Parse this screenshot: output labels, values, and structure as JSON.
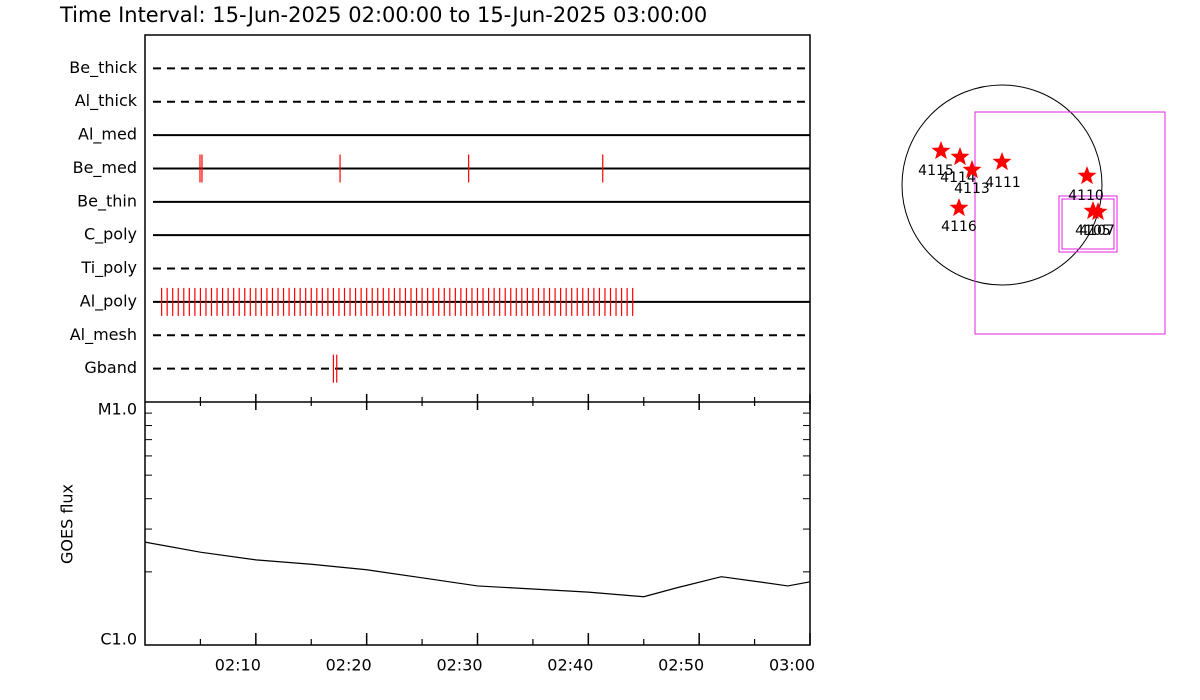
{
  "chart_data": [
    {
      "type": "timeline",
      "title": "Time Interval: 15-Jun-2025 02:00:00 to 15-Jun-2025 03:00:00",
      "categories": [
        "Be_thick",
        "Al_thick",
        "Al_med",
        "Be_med",
        "Be_thin",
        "C_poly",
        "Ti_poly",
        "Al_poly",
        "Al_mesh",
        "Gband"
      ],
      "line_styles": [
        "dashed",
        "dashed",
        "solid",
        "solid",
        "solid",
        "solid",
        "dashed",
        "solid",
        "dashed",
        "dashed"
      ],
      "events": [
        [],
        [],
        [],
        [
          4.96,
          5.14,
          17.6,
          29.2,
          41.3
        ],
        [],
        [],
        [],
        [
          1.5,
          2,
          2.5,
          3,
          3.5,
          4,
          4.5,
          5,
          5.5,
          6,
          6.5,
          7,
          7.5,
          8,
          8.5,
          9,
          9.5,
          10,
          10.5,
          11,
          11.5,
          12,
          12.5,
          13,
          13.5,
          14,
          14.5,
          15,
          15.5,
          16,
          16.5,
          17,
          17.5,
          18,
          18.5,
          19,
          19.5,
          20,
          20.5,
          21,
          21.5,
          22,
          22.5,
          23,
          23.5,
          24,
          24.5,
          25,
          25.5,
          26,
          26.5,
          27,
          27.5,
          28,
          28.5,
          29,
          29.5,
          30,
          30.5,
          31,
          31.5,
          32,
          32.5,
          33,
          33.5,
          34,
          34.5,
          35,
          35.5,
          36,
          36.5,
          37,
          37.5,
          38,
          38.5,
          39,
          39.5,
          40,
          40.5,
          41,
          41.5,
          42,
          42.5,
          43,
          43.5,
          44
        ],
        [],
        [
          17.0,
          17.3
        ]
      ],
      "color": "#ff0000",
      "xlim": [
        0,
        60
      ]
    },
    {
      "type": "line",
      "ylabel": "GOES flux",
      "x": [
        0,
        5,
        10,
        15,
        20,
        25,
        30,
        35,
        40,
        45,
        48,
        52,
        55,
        58,
        60
      ],
      "values": [
        2.65e-06,
        2.41e-06,
        2.24e-06,
        2.15e-06,
        2.04e-06,
        1.89e-06,
        1.75e-06,
        1.7e-06,
        1.65e-06,
        1.58e-06,
        1.72e-06,
        1.91e-06,
        1.83e-06,
        1.75e-06,
        1.82e-06
      ],
      "color": "#000000",
      "log_scale": true,
      "ylim": [
        1e-06,
        1e-05
      ],
      "yticks": [
        {
          "value": 1e-06,
          "label": "C1.0"
        },
        {
          "value": 1e-05,
          "label": "M1.0"
        }
      ],
      "yminor": [
        2e-06,
        3e-06,
        4e-06,
        5e-06,
        6e-06,
        7e-06,
        8e-06,
        9e-06
      ],
      "xlim": [
        0,
        60
      ],
      "xticks": [
        {
          "value": 10,
          "label": "02:10"
        },
        {
          "value": 20,
          "label": "02:20"
        },
        {
          "value": 30,
          "label": "02:30"
        },
        {
          "value": 40,
          "label": "02:40"
        },
        {
          "value": 50,
          "label": "02:50"
        },
        {
          "value": 60,
          "label": "03:00"
        }
      ],
      "xminor": [
        5,
        15,
        25,
        35,
        45,
        55
      ]
    }
  ],
  "map": {
    "regions": [
      "4115",
      "4114",
      "4113",
      "4111",
      "4110",
      "4116",
      "4105",
      "4107"
    ],
    "color": "#ff0000"
  }
}
